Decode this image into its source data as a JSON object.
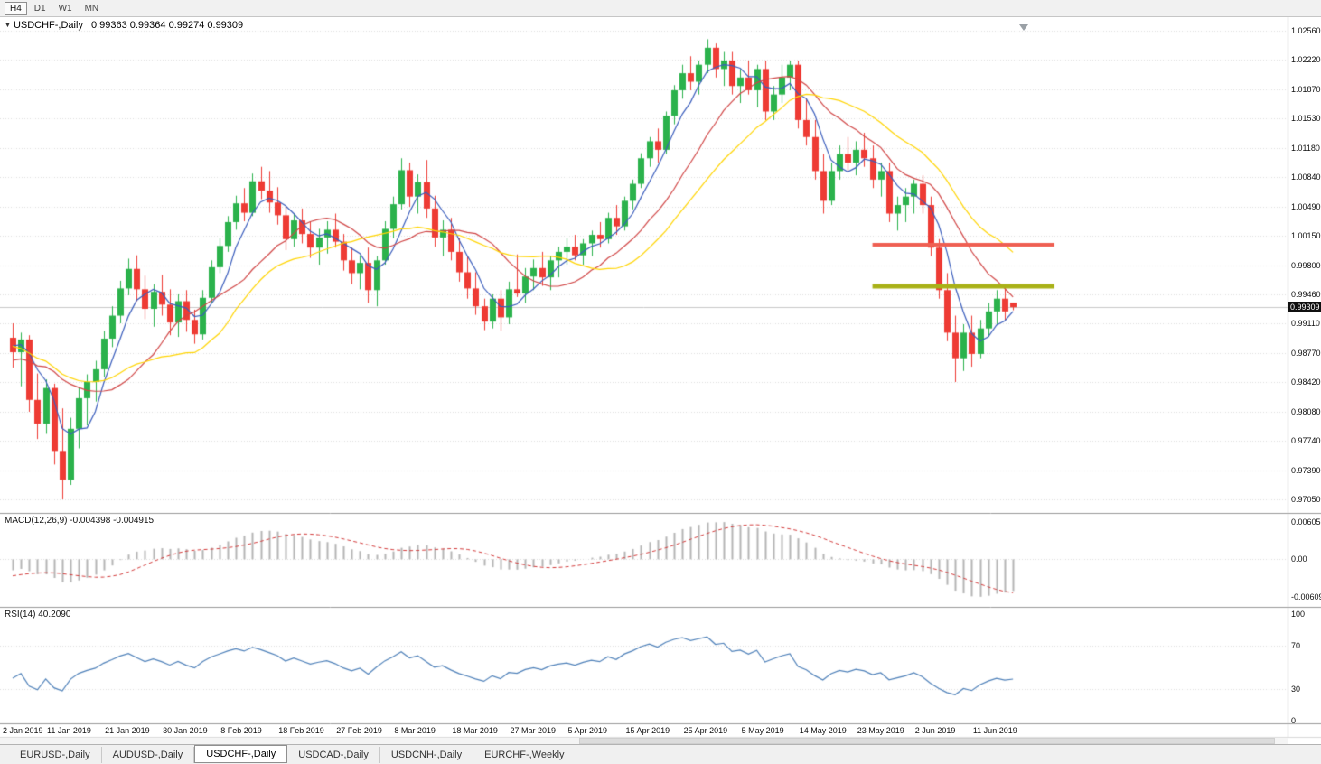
{
  "toolbar": {
    "buttons": [
      {
        "label": "H4",
        "active": true
      },
      {
        "label": "D1",
        "active": false
      },
      {
        "label": "W1",
        "active": false
      },
      {
        "label": "MN",
        "active": false
      }
    ]
  },
  "icons": {
    "dropdown": "▼"
  },
  "chart_header": {
    "title": "USDCHF-,Daily",
    "ohlc": "0.99363 0.99364 0.99274 0.99309"
  },
  "price_axis": {
    "labels": [
      "1.02560",
      "1.02220",
      "1.01870",
      "1.01530",
      "1.01180",
      "1.00840",
      "1.00490",
      "1.00150",
      "0.99800",
      "0.99460",
      "0.99110",
      "0.98770",
      "0.98420",
      "0.98080",
      "0.97740",
      "0.97390",
      "0.97050"
    ],
    "current_price": "0.99309"
  },
  "macd_panel": {
    "label": "MACD(12,26,9) -0.004398 -0.004915",
    "axis_labels": [
      "0.006058",
      "0.00",
      "-0.006096"
    ]
  },
  "rsi_panel": {
    "label": "RSI(14) 40.2090",
    "axis_labels": [
      "100",
      "70",
      "30",
      "0"
    ]
  },
  "time_axis": {
    "labels": [
      "2 Jan 2019",
      "11 Jan 2019",
      "21 Jan 2019",
      "30 Jan 2019",
      "8 Feb 2019",
      "18 Feb 2019",
      "27 Feb 2019",
      "8 Mar 2019",
      "18 Mar 2019",
      "27 Mar 2019",
      "5 Apr 2019",
      "15 Apr 2019",
      "25 Apr 2019",
      "5 May 2019",
      "14 May 2019",
      "23 May 2019",
      "2 Jun 2019",
      "11 Jun 2019"
    ]
  },
  "tabs": {
    "items": [
      {
        "label": "EURUSD-,Daily",
        "active": false
      },
      {
        "label": "AUDUSD-,Daily",
        "active": false
      },
      {
        "label": "USDCHF-,Daily",
        "active": true
      },
      {
        "label": "USDCAD-,Daily",
        "active": false
      },
      {
        "label": "USDCNH-,Daily",
        "active": false
      },
      {
        "label": "EURCHF-,Weekly",
        "active": false
      }
    ]
  },
  "colors": {
    "bull": "#2bb24c",
    "bear": "#ee3b34",
    "ma_fast": "#3a5dbc",
    "ma_mid": "#d04545",
    "ma_slow": "#ffd400",
    "macd_hist": "#b5b5b5",
    "macd_signal": "#d23a3a",
    "rsi": "#4f81b9",
    "grid": "#dedede",
    "hline_red": "#ef5f52",
    "hline_olive": "#a9b117",
    "price_line": "#c8c8c8",
    "tag_bg": "#101010"
  },
  "chart_data": {
    "type": "candlestick",
    "symbol": "USDCHF-",
    "timeframe": "Daily",
    "price_range": [
      0.9705,
      1.0256
    ],
    "current_bar": {
      "open": 0.99363,
      "high": 0.99364,
      "low": 0.99274,
      "close": 0.99309
    },
    "ohlc": [
      [
        0.9895,
        0.9912,
        0.986,
        0.9878
      ],
      [
        0.9878,
        0.9901,
        0.9838,
        0.9893
      ],
      [
        0.9893,
        0.9898,
        0.9808,
        0.9822
      ],
      [
        0.9822,
        0.9853,
        0.9776,
        0.9794
      ],
      [
        0.9794,
        0.9846,
        0.9782,
        0.9836
      ],
      [
        0.9836,
        0.9841,
        0.9746,
        0.9762
      ],
      [
        0.9762,
        0.9812,
        0.9705,
        0.9728
      ],
      [
        0.9728,
        0.9801,
        0.9722,
        0.9788
      ],
      [
        0.9788,
        0.9836,
        0.9765,
        0.9824
      ],
      [
        0.9824,
        0.9852,
        0.9792,
        0.9843
      ],
      [
        0.9843,
        0.9868,
        0.982,
        0.9858
      ],
      [
        0.9858,
        0.9903,
        0.9849,
        0.9894
      ],
      [
        0.9894,
        0.9932,
        0.9884,
        0.9921
      ],
      [
        0.9921,
        0.9962,
        0.9912,
        0.9953
      ],
      [
        0.9953,
        0.9988,
        0.9945,
        0.9976
      ],
      [
        0.9976,
        0.9992,
        0.9938,
        0.9952
      ],
      [
        0.9952,
        0.9968,
        0.9917,
        0.9929
      ],
      [
        0.9929,
        0.9958,
        0.9908,
        0.9949
      ],
      [
        0.9949,
        0.9969,
        0.9921,
        0.9934
      ],
      [
        0.9934,
        0.9952,
        0.9898,
        0.9913
      ],
      [
        0.9913,
        0.9946,
        0.9896,
        0.9938
      ],
      [
        0.9938,
        0.9951,
        0.9902,
        0.9916
      ],
      [
        0.9916,
        0.9928,
        0.9888,
        0.9899
      ],
      [
        0.9899,
        0.9951,
        0.9893,
        0.9942
      ],
      [
        0.9942,
        0.9986,
        0.9936,
        0.9978
      ],
      [
        0.9978,
        1.0012,
        0.9971,
        1.0003
      ],
      [
        1.0003,
        1.0038,
        0.9996,
        1.0031
      ],
      [
        1.0031,
        1.0062,
        1.0022,
        1.0053
      ],
      [
        1.0053,
        1.0071,
        1.0032,
        1.0042
      ],
      [
        1.0042,
        1.0088,
        1.0038,
        1.0079
      ],
      [
        1.0079,
        1.0096,
        1.0058,
        1.0068
      ],
      [
        1.0068,
        1.0091,
        1.0042,
        1.0054
      ],
      [
        1.0054,
        1.0072,
        1.0028,
        1.0039
      ],
      [
        1.0039,
        1.0049,
        0.9998,
        1.0011
      ],
      [
        1.0011,
        1.0041,
        1.0002,
        1.0033
      ],
      [
        1.0033,
        1.0047,
        1.0006,
        1.0017
      ],
      [
        1.0017,
        1.0031,
        0.9989,
        1.0001
      ],
      [
        1.0001,
        1.0023,
        0.9981,
        1.0013
      ],
      [
        1.0013,
        1.0032,
        0.9994,
        1.0022
      ],
      [
        1.0022,
        1.0041,
        1.0001,
        1.0008
      ],
      [
        1.0008,
        1.0017,
        0.9974,
        0.9986
      ],
      [
        0.9986,
        1.0001,
        0.9958,
        0.9971
      ],
      [
        0.9971,
        0.9992,
        0.9952,
        0.9983
      ],
      [
        0.9983,
        1.0001,
        0.9936,
        0.9951
      ],
      [
        0.9951,
        0.9991,
        0.9932,
        0.9986
      ],
      [
        0.9986,
        1.0032,
        0.9981,
        1.0023
      ],
      [
        1.0023,
        1.0061,
        1.0012,
        1.0052
      ],
      [
        1.0052,
        1.0106,
        1.0046,
        1.0092
      ],
      [
        1.0092,
        1.0101,
        1.0049,
        1.0061
      ],
      [
        1.0061,
        1.0087,
        1.0041,
        1.0078
      ],
      [
        1.0078,
        1.0104,
        1.0036,
        1.0047
      ],
      [
        1.0047,
        1.0062,
        1.0002,
        1.0013
      ],
      [
        1.0013,
        1.0033,
        0.9991,
        1.0022
      ],
      [
        1.0022,
        1.0036,
        0.9986,
        0.9996
      ],
      [
        0.9996,
        1.0012,
        0.9961,
        0.9972
      ],
      [
        0.9972,
        0.9991,
        0.9941,
        0.9953
      ],
      [
        0.9953,
        0.9972,
        0.9922,
        0.9932
      ],
      [
        0.9932,
        0.9941,
        0.9904,
        0.9914
      ],
      [
        0.9914,
        0.9946,
        0.9906,
        0.9941
      ],
      [
        0.9941,
        0.9951,
        0.9903,
        0.9919
      ],
      [
        0.9919,
        0.9961,
        0.9911,
        0.9952
      ],
      [
        0.9952,
        0.9993,
        0.9943,
        0.9947
      ],
      [
        0.9947,
        0.9977,
        0.9936,
        0.9967
      ],
      [
        0.9967,
        0.9987,
        0.9951,
        0.9977
      ],
      [
        0.9977,
        0.9996,
        0.9956,
        0.9966
      ],
      [
        0.9966,
        0.9991,
        0.9951,
        0.9986
      ],
      [
        0.9986,
        1.0002,
        0.9966,
        0.9996
      ],
      [
        0.9996,
        1.0012,
        0.9981,
        1.0002
      ],
      [
        1.0002,
        1.0016,
        0.9986,
        0.9992
      ],
      [
        0.9992,
        1.0011,
        0.9981,
        1.0006
      ],
      [
        1.0006,
        1.0021,
        0.9991,
        1.0016
      ],
      [
        1.0016,
        1.0031,
        1.0001,
        1.0011
      ],
      [
        1.0011,
        1.0042,
        1.0006,
        1.0036
      ],
      [
        1.0036,
        1.0051,
        1.0016,
        1.0026
      ],
      [
        1.0026,
        1.0061,
        1.0021,
        1.0056
      ],
      [
        1.0056,
        1.0081,
        1.0046,
        1.0076
      ],
      [
        1.0076,
        1.0112,
        1.0071,
        1.0106
      ],
      [
        1.0106,
        1.0131,
        1.0096,
        1.0126
      ],
      [
        1.0126,
        1.0141,
        1.0101,
        1.0116
      ],
      [
        1.0116,
        1.0161,
        1.0111,
        1.0156
      ],
      [
        1.0156,
        1.0192,
        1.0146,
        1.0186
      ],
      [
        1.0186,
        1.0216,
        1.0176,
        1.0206
      ],
      [
        1.0206,
        1.0226,
        1.0186,
        1.0196
      ],
      [
        1.0196,
        1.0221,
        1.0181,
        1.0216
      ],
      [
        1.0216,
        1.0246,
        1.0206,
        1.0236
      ],
      [
        1.0236,
        1.0241,
        1.0201,
        1.0211
      ],
      [
        1.0211,
        1.0231,
        1.0191,
        1.0221
      ],
      [
        1.0221,
        1.0231,
        1.0181,
        1.0191
      ],
      [
        1.0191,
        1.0211,
        1.0171,
        1.0201
      ],
      [
        1.0201,
        1.0221,
        1.0181,
        1.0186
      ],
      [
        1.0186,
        1.0216,
        1.0166,
        1.0211
      ],
      [
        1.0211,
        1.0221,
        1.0151,
        1.0161
      ],
      [
        1.0161,
        1.0191,
        1.0151,
        1.0181
      ],
      [
        1.0181,
        1.0216,
        1.0171,
        1.0201
      ],
      [
        1.0201,
        1.0221,
        1.0186,
        1.0216
      ],
      [
        1.0216,
        1.0221,
        1.0141,
        1.0151
      ],
      [
        1.0151,
        1.0176,
        1.0121,
        1.0131
      ],
      [
        1.0131,
        1.0151,
        1.0081,
        1.0091
      ],
      [
        1.0091,
        1.0111,
        1.0041,
        1.0056
      ],
      [
        1.0056,
        1.0101,
        1.0051,
        1.0091
      ],
      [
        1.0091,
        1.0121,
        1.0081,
        1.0111
      ],
      [
        1.0111,
        1.0131,
        1.0091,
        1.0101
      ],
      [
        1.0101,
        1.0126,
        1.0086,
        1.0116
      ],
      [
        1.0116,
        1.0136,
        1.0096,
        1.0106
      ],
      [
        1.0106,
        1.0121,
        1.0071,
        1.0081
      ],
      [
        1.0081,
        1.0101,
        1.0061,
        1.0091
      ],
      [
        1.0091,
        1.0101,
        1.0031,
        1.0041
      ],
      [
        1.0041,
        1.0061,
        1.0021,
        1.0051
      ],
      [
        1.0051,
        1.0071,
        1.0031,
        1.0061
      ],
      [
        1.0061,
        1.0081,
        1.0041,
        1.0076
      ],
      [
        1.0076,
        1.0086,
        1.0041,
        1.0051
      ],
      [
        1.0051,
        1.0061,
        0.9991,
        1.0001
      ],
      [
        1.0001,
        1.0011,
        0.9941,
        0.9951
      ],
      [
        0.9951,
        0.9971,
        0.9891,
        0.9901
      ],
      [
        0.9901,
        0.9921,
        0.9843,
        0.9871
      ],
      [
        0.9871,
        0.9911,
        0.9856,
        0.9901
      ],
      [
        0.9901,
        0.9921,
        0.9861,
        0.9876
      ],
      [
        0.9876,
        0.9916,
        0.9871,
        0.9906
      ],
      [
        0.9906,
        0.9936,
        0.9896,
        0.9926
      ],
      [
        0.9926,
        0.9951,
        0.9911,
        0.9941
      ],
      [
        0.9941,
        0.9956,
        0.9916,
        0.9926
      ],
      [
        0.99363,
        0.99364,
        0.99274,
        0.99309
      ]
    ],
    "warmup_closes": [
      0.9982,
      0.9991,
      0.9973,
      0.9956,
      0.9941,
      0.9952,
      0.9934,
      0.9919,
      0.9906,
      0.9916,
      0.9896,
      0.9881,
      0.9892,
      0.9871,
      0.9856,
      0.9866,
      0.9851,
      0.9836,
      0.9846,
      0.9861,
      0.9876,
      0.9886,
      0.9871,
      0.9891,
      0.9901
    ],
    "moving_averages": [
      {
        "type": "sma",
        "period": 5,
        "color_key": "ma_fast"
      },
      {
        "type": "sma",
        "period": 13,
        "color_key": "ma_mid"
      },
      {
        "type": "sma",
        "period": 21,
        "color_key": "ma_slow"
      }
    ],
    "horizontal_lines": [
      {
        "price": 1.0004,
        "from_bar": 104,
        "to_bar": 126,
        "color_key": "hline_red",
        "width": 4
      },
      {
        "price": 0.9956,
        "from_bar": 104,
        "to_bar": 126,
        "color_key": "hline_olive",
        "width": 5
      }
    ],
    "indicators": [
      {
        "name": "MACD",
        "params": [
          12,
          26,
          9
        ],
        "main_value": -0.004398,
        "signal_value": -0.004915,
        "axis_range": [
          -0.006096,
          0.006058
        ]
      },
      {
        "name": "RSI",
        "params": [
          14
        ],
        "value": 40.209,
        "axis_range": [
          0,
          100
        ],
        "levels": [
          30,
          70
        ]
      }
    ]
  }
}
